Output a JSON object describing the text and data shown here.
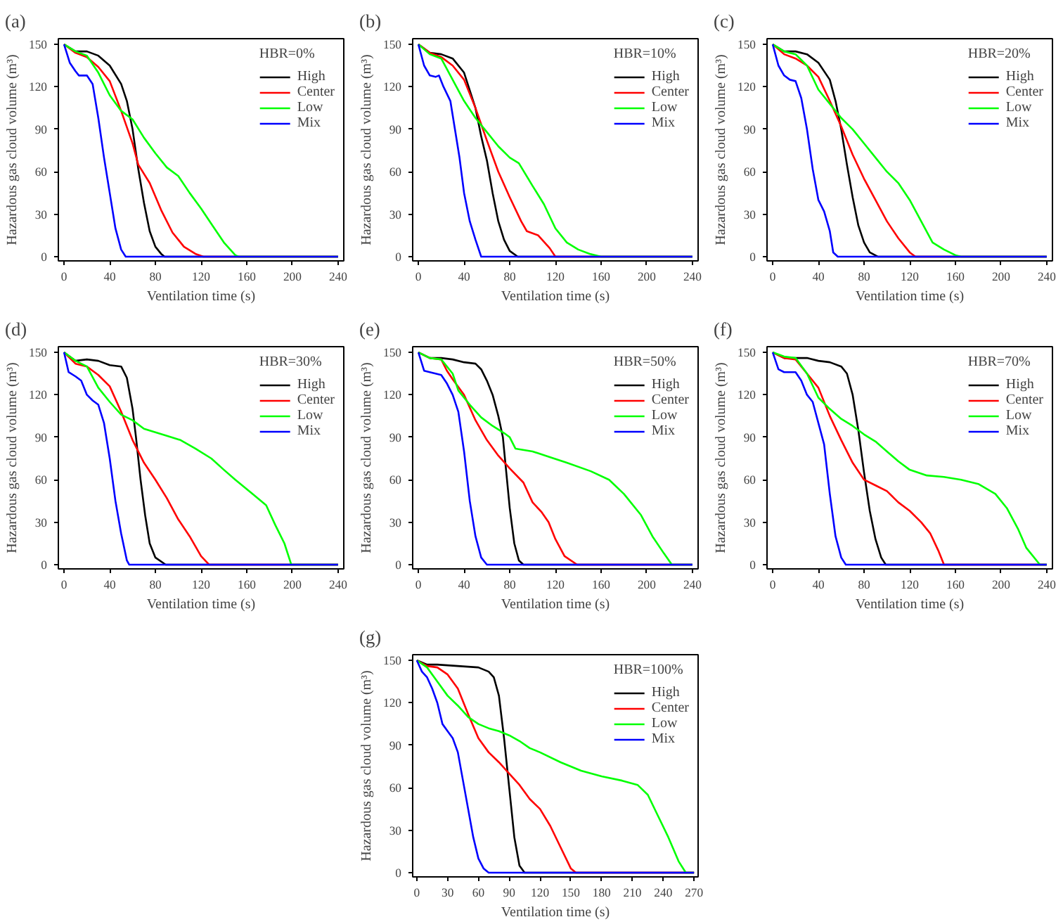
{
  "chart_data": [
    {
      "type": "line",
      "title": "(a)",
      "legend_title": "HBR=0%",
      "xlabel": "Ventilation time (s)",
      "ylabel": "Hazardous gas cloud volume (m³)",
      "xlim": [
        -5,
        245
      ],
      "ylim": [
        -3,
        154
      ],
      "xticks": [
        0,
        40,
        80,
        120,
        160,
        200,
        240
      ],
      "yticks": [
        0,
        30,
        60,
        90,
        120,
        150
      ],
      "legend": "top right",
      "series": [
        {
          "name": "High",
          "color": "#000000",
          "x": [
            0,
            10,
            20,
            30,
            40,
            50,
            55,
            60,
            65,
            70,
            75,
            80,
            85,
            88,
            240
          ],
          "values": [
            150,
            145,
            145,
            142,
            135,
            122,
            110,
            90,
            62,
            38,
            18,
            7,
            2,
            0,
            0
          ]
        },
        {
          "name": "Center",
          "color": "#ff0000",
          "x": [
            0,
            10,
            20,
            30,
            40,
            50,
            60,
            65,
            75,
            85,
            95,
            105,
            115,
            122,
            240
          ],
          "values": [
            150,
            144,
            141,
            134,
            124,
            103,
            80,
            65,
            52,
            33,
            17,
            7,
            2,
            0,
            0
          ]
        },
        {
          "name": "Low",
          "color": "#00ff00",
          "x": [
            0,
            10,
            20,
            30,
            40,
            50,
            60,
            70,
            80,
            90,
            100,
            110,
            120,
            130,
            140,
            150,
            153,
            240
          ],
          "values": [
            150,
            145,
            142,
            130,
            114,
            103,
            97,
            84,
            73,
            63,
            57,
            45,
            34,
            22,
            10,
            1,
            0,
            0
          ]
        },
        {
          "name": "Mix",
          "color": "#0000ff",
          "x": [
            0,
            5,
            10,
            13,
            20,
            25,
            30,
            35,
            40,
            45,
            50,
            54,
            240
          ],
          "values": [
            150,
            137,
            131,
            128,
            128,
            122,
            98,
            70,
            45,
            20,
            5,
            0,
            0
          ]
        }
      ]
    },
    {
      "type": "line",
      "title": "(b)",
      "legend_title": "HBR=10%",
      "xlabel": "Ventilation time (s)",
      "ylabel": "Hazardous gas cloud volume (m³)",
      "xlim": [
        -5,
        245
      ],
      "ylim": [
        -3,
        154
      ],
      "xticks": [
        0,
        40,
        80,
        120,
        160,
        200,
        240
      ],
      "yticks": [
        0,
        30,
        60,
        90,
        120,
        150
      ],
      "legend": "top right",
      "series": [
        {
          "name": "High",
          "color": "#000000",
          "x": [
            0,
            10,
            20,
            30,
            40,
            50,
            55,
            60,
            65,
            70,
            75,
            80,
            87,
            240
          ],
          "values": [
            150,
            144,
            143,
            140,
            130,
            105,
            85,
            68,
            45,
            25,
            12,
            4,
            0,
            0
          ]
        },
        {
          "name": "Center",
          "color": "#ff0000",
          "x": [
            0,
            10,
            20,
            30,
            40,
            50,
            60,
            70,
            80,
            90,
            95,
            105,
            115,
            120,
            240
          ],
          "values": [
            150,
            144,
            141,
            135,
            125,
            105,
            82,
            60,
            42,
            25,
            18,
            15,
            6,
            0,
            0
          ]
        },
        {
          "name": "Low",
          "color": "#00ff00",
          "x": [
            0,
            10,
            20,
            30,
            40,
            50,
            60,
            70,
            80,
            88,
            100,
            110,
            120,
            130,
            140,
            150,
            160,
            240
          ],
          "values": [
            150,
            143,
            140,
            125,
            110,
            98,
            88,
            78,
            70,
            66,
            50,
            37,
            20,
            10,
            5,
            2,
            0,
            0
          ]
        },
        {
          "name": "Mix",
          "color": "#0000ff",
          "x": [
            0,
            5,
            10,
            15,
            18,
            22,
            28,
            32,
            36,
            40,
            45,
            50,
            55,
            240
          ],
          "values": [
            150,
            135,
            128,
            127,
            128,
            120,
            110,
            90,
            70,
            45,
            25,
            12,
            0,
            0
          ]
        }
      ]
    },
    {
      "type": "line",
      "title": "(c)",
      "legend_title": "HBR=20%",
      "xlabel": "Ventilation time (s)",
      "ylabel": "Hazardous gas cloud volume (m³)",
      "xlim": [
        -5,
        245
      ],
      "ylim": [
        -3,
        154
      ],
      "xticks": [
        0,
        40,
        80,
        120,
        160,
        200,
        240
      ],
      "yticks": [
        0,
        30,
        60,
        90,
        120,
        150
      ],
      "legend": "top right",
      "series": [
        {
          "name": "High",
          "color": "#000000",
          "x": [
            0,
            10,
            20,
            30,
            40,
            50,
            55,
            60,
            65,
            70,
            75,
            80,
            85,
            92,
            240
          ],
          "values": [
            150,
            145,
            145,
            143,
            137,
            125,
            110,
            90,
            65,
            42,
            22,
            10,
            3,
            0,
            0
          ]
        },
        {
          "name": "Center",
          "color": "#ff0000",
          "x": [
            0,
            10,
            20,
            30,
            40,
            50,
            60,
            70,
            80,
            90,
            100,
            110,
            120,
            125,
            240
          ],
          "values": [
            150,
            143,
            140,
            135,
            127,
            110,
            92,
            72,
            55,
            40,
            25,
            13,
            3,
            0,
            0
          ]
        },
        {
          "name": "Low",
          "color": "#00ff00",
          "x": [
            0,
            10,
            20,
            30,
            40,
            50,
            60,
            70,
            80,
            90,
            100,
            110,
            120,
            130,
            140,
            150,
            160,
            165,
            240
          ],
          "values": [
            150,
            145,
            143,
            135,
            118,
            108,
            98,
            90,
            80,
            70,
            60,
            52,
            40,
            25,
            10,
            5,
            1,
            0,
            0
          ]
        },
        {
          "name": "Mix",
          "color": "#0000ff",
          "x": [
            0,
            5,
            10,
            15,
            20,
            25,
            30,
            35,
            40,
            45,
            50,
            53,
            57,
            240
          ],
          "values": [
            150,
            135,
            128,
            125,
            124,
            112,
            90,
            62,
            40,
            32,
            18,
            3,
            0,
            0
          ]
        }
      ]
    },
    {
      "type": "line",
      "title": "(d)",
      "legend_title": "HBR=30%",
      "xlabel": "Ventilation time (s)",
      "ylabel": "Hazardous gas cloud volume (m³)",
      "xlim": [
        -5,
        245
      ],
      "ylim": [
        -3,
        154
      ],
      "xticks": [
        0,
        40,
        80,
        120,
        160,
        200,
        240
      ],
      "yticks": [
        0,
        30,
        60,
        90,
        120,
        150
      ],
      "legend": "top right",
      "series": [
        {
          "name": "High",
          "color": "#000000",
          "x": [
            0,
            10,
            20,
            30,
            40,
            50,
            55,
            60,
            63,
            67,
            71,
            75,
            80,
            89,
            240
          ],
          "values": [
            150,
            144,
            145,
            144,
            141,
            140,
            132,
            110,
            90,
            60,
            35,
            15,
            5,
            0,
            0
          ]
        },
        {
          "name": "Center",
          "color": "#ff0000",
          "x": [
            0,
            10,
            20,
            30,
            40,
            50,
            60,
            70,
            80,
            90,
            100,
            110,
            120,
            127,
            240
          ],
          "values": [
            150,
            142,
            140,
            134,
            126,
            108,
            88,
            72,
            60,
            47,
            32,
            20,
            6,
            0,
            0
          ]
        },
        {
          "name": "Low",
          "color": "#00ff00",
          "x": [
            0,
            10,
            20,
            30,
            40,
            50,
            60,
            70,
            82,
            90,
            102,
            115,
            129,
            140,
            150,
            165,
            177,
            185,
            193,
            199,
            240
          ],
          "values": [
            150,
            144,
            140,
            125,
            115,
            106,
            102,
            96,
            93,
            91,
            88,
            82,
            75,
            67,
            60,
            50,
            42,
            28,
            15,
            0,
            0
          ]
        },
        {
          "name": "Mix",
          "color": "#0000ff",
          "x": [
            0,
            4,
            10,
            15,
            20,
            25,
            30,
            35,
            40,
            45,
            50,
            55,
            57,
            240
          ],
          "values": [
            150,
            136,
            133,
            130,
            120,
            116,
            113,
            100,
            75,
            45,
            22,
            3,
            0,
            0
          ]
        }
      ]
    },
    {
      "type": "line",
      "title": "(e)",
      "legend_title": "HBR=50%",
      "xlabel": "Ventilation time (s)",
      "ylabel": "Hazardous gas cloud volume (m³)",
      "xlim": [
        -5,
        245
      ],
      "ylim": [
        -3,
        154
      ],
      "xticks": [
        0,
        40,
        80,
        120,
        160,
        200,
        240
      ],
      "yticks": [
        0,
        30,
        60,
        90,
        120,
        150
      ],
      "legend": "top right",
      "series": [
        {
          "name": "High",
          "color": "#000000",
          "x": [
            0,
            10,
            20,
            30,
            40,
            50,
            55,
            60,
            65,
            70,
            74,
            77,
            80,
            84,
            88,
            92,
            240
          ],
          "values": [
            150,
            146,
            146,
            145,
            143,
            142,
            138,
            130,
            120,
            105,
            90,
            65,
            40,
            15,
            3,
            0,
            0
          ]
        },
        {
          "name": "Center",
          "color": "#ff0000",
          "x": [
            0,
            10,
            20,
            25,
            30,
            40,
            50,
            60,
            70,
            80,
            92,
            100,
            108,
            114,
            120,
            128,
            139,
            240
          ],
          "values": [
            150,
            146,
            145,
            137,
            131,
            120,
            102,
            88,
            77,
            68,
            58,
            44,
            37,
            30,
            18,
            6,
            0,
            0
          ]
        },
        {
          "name": "Low",
          "color": "#00ff00",
          "x": [
            0,
            10,
            20,
            30,
            35,
            45,
            55,
            65,
            75,
            80,
            85,
            100,
            115,
            130,
            151,
            167,
            180,
            195,
            205,
            215,
            222,
            240
          ],
          "values": [
            150,
            146,
            145,
            135,
            123,
            113,
            104,
            98,
            93,
            90,
            82,
            80,
            76,
            72,
            66,
            60,
            50,
            35,
            20,
            8,
            0,
            0
          ]
        },
        {
          "name": "Mix",
          "color": "#0000ff",
          "x": [
            0,
            5,
            10,
            20,
            25,
            30,
            35,
            40,
            45,
            50,
            55,
            60,
            240
          ],
          "values": [
            150,
            137,
            136,
            134,
            128,
            120,
            108,
            80,
            45,
            20,
            5,
            0,
            0
          ]
        }
      ]
    },
    {
      "type": "line",
      "title": "(f)",
      "legend_title": "HBR=70%",
      "xlabel": "Ventilation time (s)",
      "ylabel": "Hazardous gas cloud volume (m³)",
      "xlim": [
        -5,
        245
      ],
      "ylim": [
        -3,
        154
      ],
      "xticks": [
        0,
        40,
        80,
        120,
        160,
        200,
        240
      ],
      "yticks": [
        0,
        30,
        60,
        90,
        120,
        150
      ],
      "legend": "top right",
      "series": [
        {
          "name": "High",
          "color": "#000000",
          "x": [
            0,
            10,
            20,
            30,
            40,
            50,
            60,
            65,
            70,
            75,
            80,
            85,
            90,
            95,
            99,
            240
          ],
          "values": [
            150,
            146,
            146,
            146,
            144,
            143,
            140,
            135,
            120,
            95,
            65,
            38,
            18,
            5,
            0,
            0
          ]
        },
        {
          "name": "Center",
          "color": "#ff0000",
          "x": [
            0,
            10,
            20,
            25,
            30,
            40,
            50,
            60,
            70,
            80,
            90,
            100,
            110,
            120,
            130,
            138,
            145,
            150,
            240
          ],
          "values": [
            150,
            146,
            145,
            140,
            135,
            125,
            105,
            88,
            72,
            60,
            56,
            52,
            44,
            38,
            30,
            22,
            10,
            0,
            0
          ]
        },
        {
          "name": "Low",
          "color": "#00ff00",
          "x": [
            0,
            10,
            20,
            30,
            40,
            50,
            60,
            70,
            80,
            90,
            100,
            110,
            120,
            135,
            150,
            165,
            180,
            195,
            205,
            215,
            222,
            234,
            240
          ],
          "values": [
            150,
            147,
            146,
            135,
            118,
            110,
            103,
            98,
            92,
            87,
            80,
            73,
            67,
            63,
            62,
            60,
            57,
            50,
            40,
            25,
            12,
            0,
            0
          ]
        },
        {
          "name": "Mix",
          "color": "#0000ff",
          "x": [
            0,
            5,
            10,
            20,
            25,
            30,
            35,
            40,
            45,
            50,
            55,
            60,
            64,
            240
          ],
          "values": [
            150,
            138,
            136,
            136,
            130,
            120,
            115,
            100,
            85,
            50,
            20,
            5,
            0,
            0
          ]
        }
      ]
    },
    {
      "type": "line",
      "title": "(g)",
      "legend_title": "HBR=100%",
      "xlabel": "Ventilation time (s)",
      "ylabel": "Hazardous gas cloud volume (m³)",
      "xlim": [
        -4,
        274
      ],
      "ylim": [
        -3,
        154
      ],
      "xticks": [
        0,
        30,
        60,
        90,
        120,
        150,
        180,
        210,
        240,
        270
      ],
      "yticks": [
        0,
        30,
        60,
        90,
        120,
        150
      ],
      "legend": "top right",
      "series": [
        {
          "name": "High",
          "color": "#000000",
          "x": [
            0,
            10,
            20,
            40,
            60,
            70,
            75,
            80,
            85,
            90,
            95,
            100,
            105,
            270
          ],
          "values": [
            150,
            147,
            147,
            146,
            145,
            142,
            138,
            125,
            95,
            60,
            25,
            5,
            0,
            0
          ]
        },
        {
          "name": "Center",
          "color": "#ff0000",
          "x": [
            0,
            10,
            20,
            30,
            40,
            50,
            60,
            70,
            80,
            90,
            100,
            110,
            120,
            130,
            140,
            150,
            155,
            270
          ],
          "values": [
            150,
            146,
            145,
            140,
            130,
            112,
            95,
            85,
            78,
            70,
            62,
            52,
            45,
            33,
            18,
            3,
            0,
            0
          ]
        },
        {
          "name": "Low",
          "color": "#00ff00",
          "x": [
            0,
            10,
            20,
            30,
            40,
            50,
            60,
            70,
            80,
            90,
            100,
            110,
            120,
            140,
            160,
            180,
            200,
            215,
            225,
            235,
            245,
            255,
            262,
            270
          ],
          "values": [
            150,
            145,
            135,
            125,
            118,
            110,
            105,
            102,
            100,
            97,
            93,
            88,
            85,
            78,
            72,
            68,
            65,
            62,
            55,
            40,
            25,
            8,
            0,
            0
          ]
        },
        {
          "name": "Mix",
          "color": "#0000ff",
          "x": [
            0,
            5,
            10,
            15,
            20,
            25,
            30,
            35,
            40,
            45,
            50,
            55,
            60,
            65,
            70,
            270
          ],
          "values": [
            150,
            142,
            138,
            130,
            120,
            105,
            100,
            95,
            85,
            65,
            45,
            25,
            10,
            3,
            0,
            0
          ]
        }
      ]
    }
  ]
}
